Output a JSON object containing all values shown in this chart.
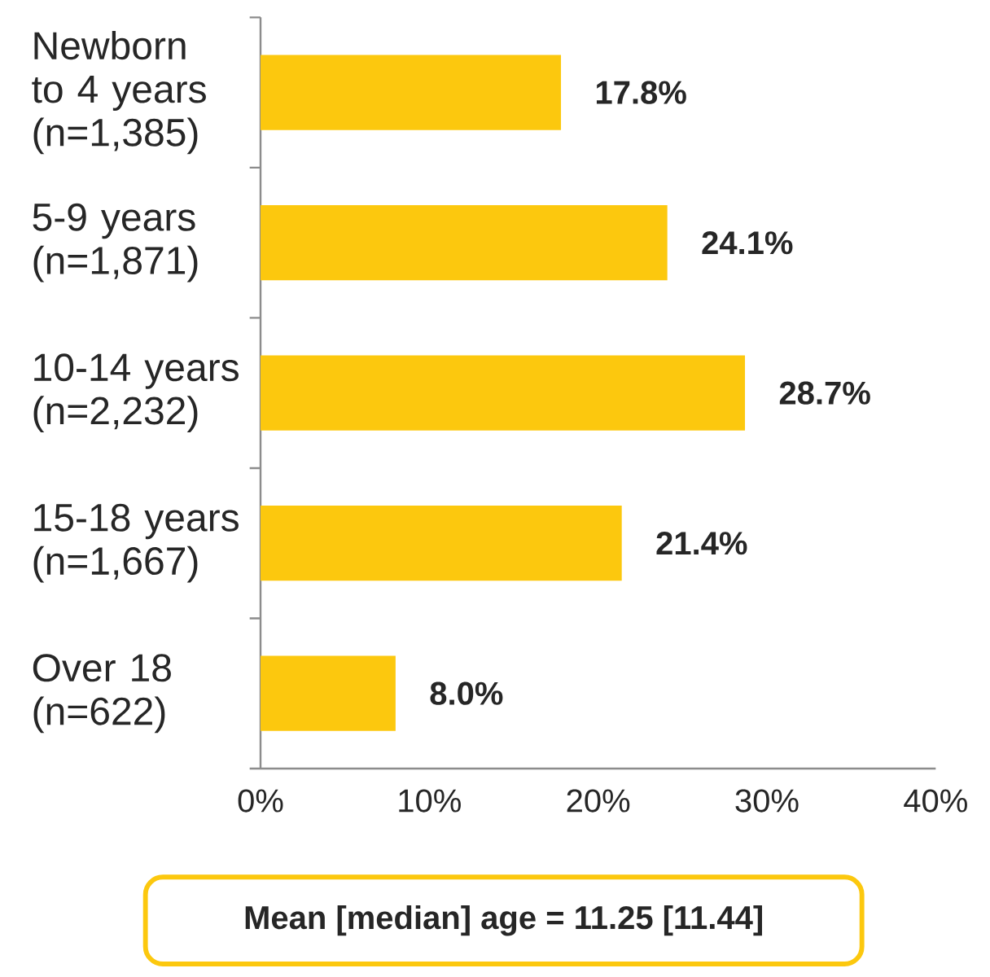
{
  "chart_data": {
    "type": "bar",
    "orientation": "horizontal",
    "categories": [
      "Newborn to 4 years (n=1,385)",
      "5-9 years (n=1,871)",
      "10-14 years (n=2,232)",
      "15-18 years (n=1,667)",
      "Over 18 (n=622)"
    ],
    "values": [
      17.8,
      24.1,
      28.7,
      21.4,
      8.0
    ],
    "value_labels": [
      "17.8%",
      "24.1%",
      "28.7%",
      "21.4%",
      "8.0%"
    ],
    "color": "#fcc80e",
    "xlim": [
      0,
      40
    ],
    "xticks": [
      {
        "value": 0,
        "label": "0%"
      },
      {
        "value": 10,
        "label": "10%"
      },
      {
        "value": 20,
        "label": "20%"
      },
      {
        "value": 30,
        "label": "30%"
      },
      {
        "value": 40,
        "label": "40%"
      }
    ],
    "annotations": [
      "Mean [median] age = 11.25 [11.44]"
    ]
  }
}
